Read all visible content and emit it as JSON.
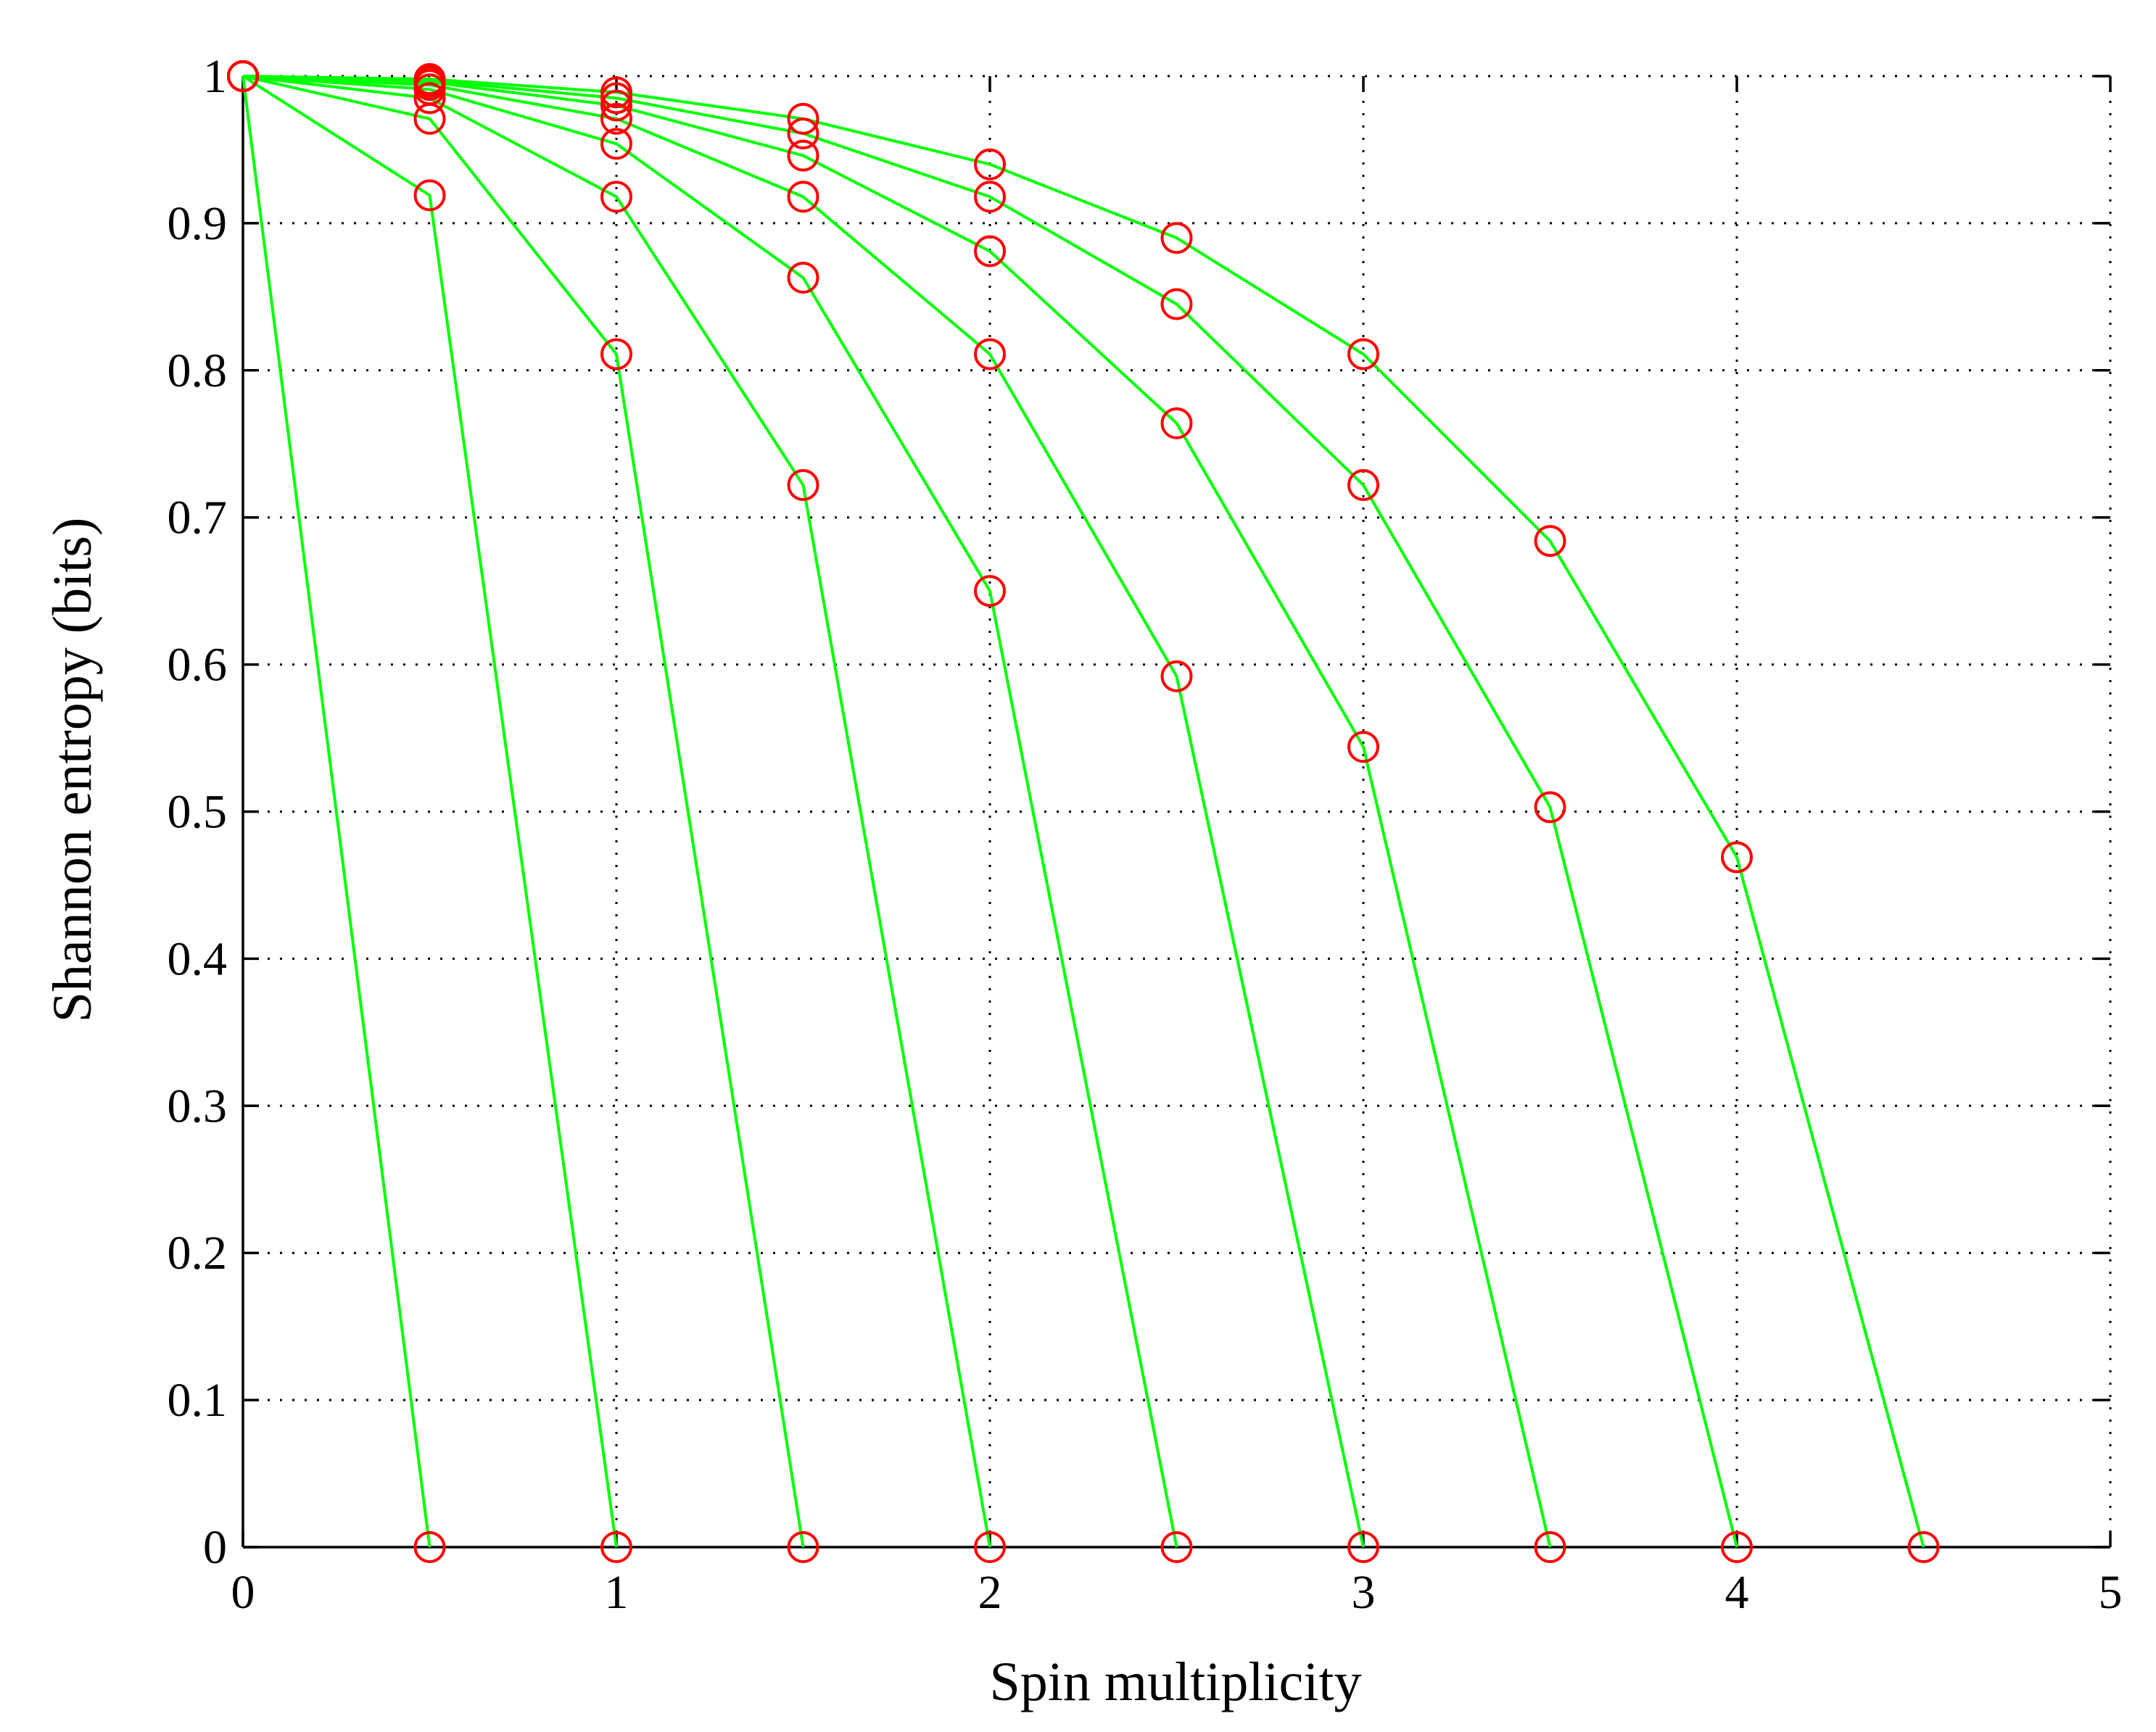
{
  "chart_data": {
    "type": "line",
    "title": "",
    "xlabel": "Spin multiplicity",
    "ylabel": "Shannon entropy (bits)",
    "xlim": [
      0,
      5
    ],
    "ylim": [
      0,
      1
    ],
    "xticks": [
      "0",
      "1",
      "2",
      "3",
      "4",
      "5"
    ],
    "yticks": [
      "0",
      "0.1",
      "0.2",
      "0.3",
      "0.4",
      "0.5",
      "0.6",
      "0.7",
      "0.8",
      "0.9",
      "1"
    ],
    "grid": true,
    "legend": "none",
    "colors": {
      "line": "#00ff00",
      "marker": "#ff0000"
    },
    "series": [
      {
        "x": [
          0,
          0.5
        ],
        "y": [
          1,
          0
        ]
      },
      {
        "x": [
          0,
          0.5,
          1
        ],
        "y": [
          1,
          0.919,
          0
        ]
      },
      {
        "x": [
          0,
          0.5,
          1,
          1.5
        ],
        "y": [
          1,
          0.971,
          0.811,
          0
        ]
      },
      {
        "x": [
          0,
          0.5,
          1,
          1.5,
          2
        ],
        "y": [
          1,
          0.985,
          0.918,
          0.722,
          0
        ]
      },
      {
        "x": [
          0,
          0.5,
          1,
          1.5,
          2,
          2.5
        ],
        "y": [
          1,
          0.991,
          0.954,
          0.863,
          0.65,
          0
        ]
      },
      {
        "x": [
          0,
          0.5,
          1,
          1.5,
          2,
          2.5,
          3
        ],
        "y": [
          1,
          0.994,
          0.971,
          0.918,
          0.811,
          0.592,
          0
        ]
      },
      {
        "x": [
          0,
          0.5,
          1,
          1.5,
          2,
          2.5,
          3,
          3.5
        ],
        "y": [
          1,
          0.996,
          0.98,
          0.946,
          0.881,
          0.764,
          0.544,
          0
        ]
      },
      {
        "x": [
          0,
          0.5,
          1,
          1.5,
          2,
          2.5,
          3,
          3.5,
          4
        ],
        "y": [
          1,
          0.997,
          0.985,
          0.961,
          0.918,
          0.845,
          0.722,
          0.503,
          0
        ]
      },
      {
        "x": [
          0,
          0.5,
          1,
          1.5,
          2,
          2.5,
          3,
          3.5,
          4,
          4.5
        ],
        "y": [
          1,
          0.998,
          0.989,
          0.971,
          0.94,
          0.89,
          0.811,
          0.684,
          0.469,
          0
        ]
      }
    ]
  }
}
